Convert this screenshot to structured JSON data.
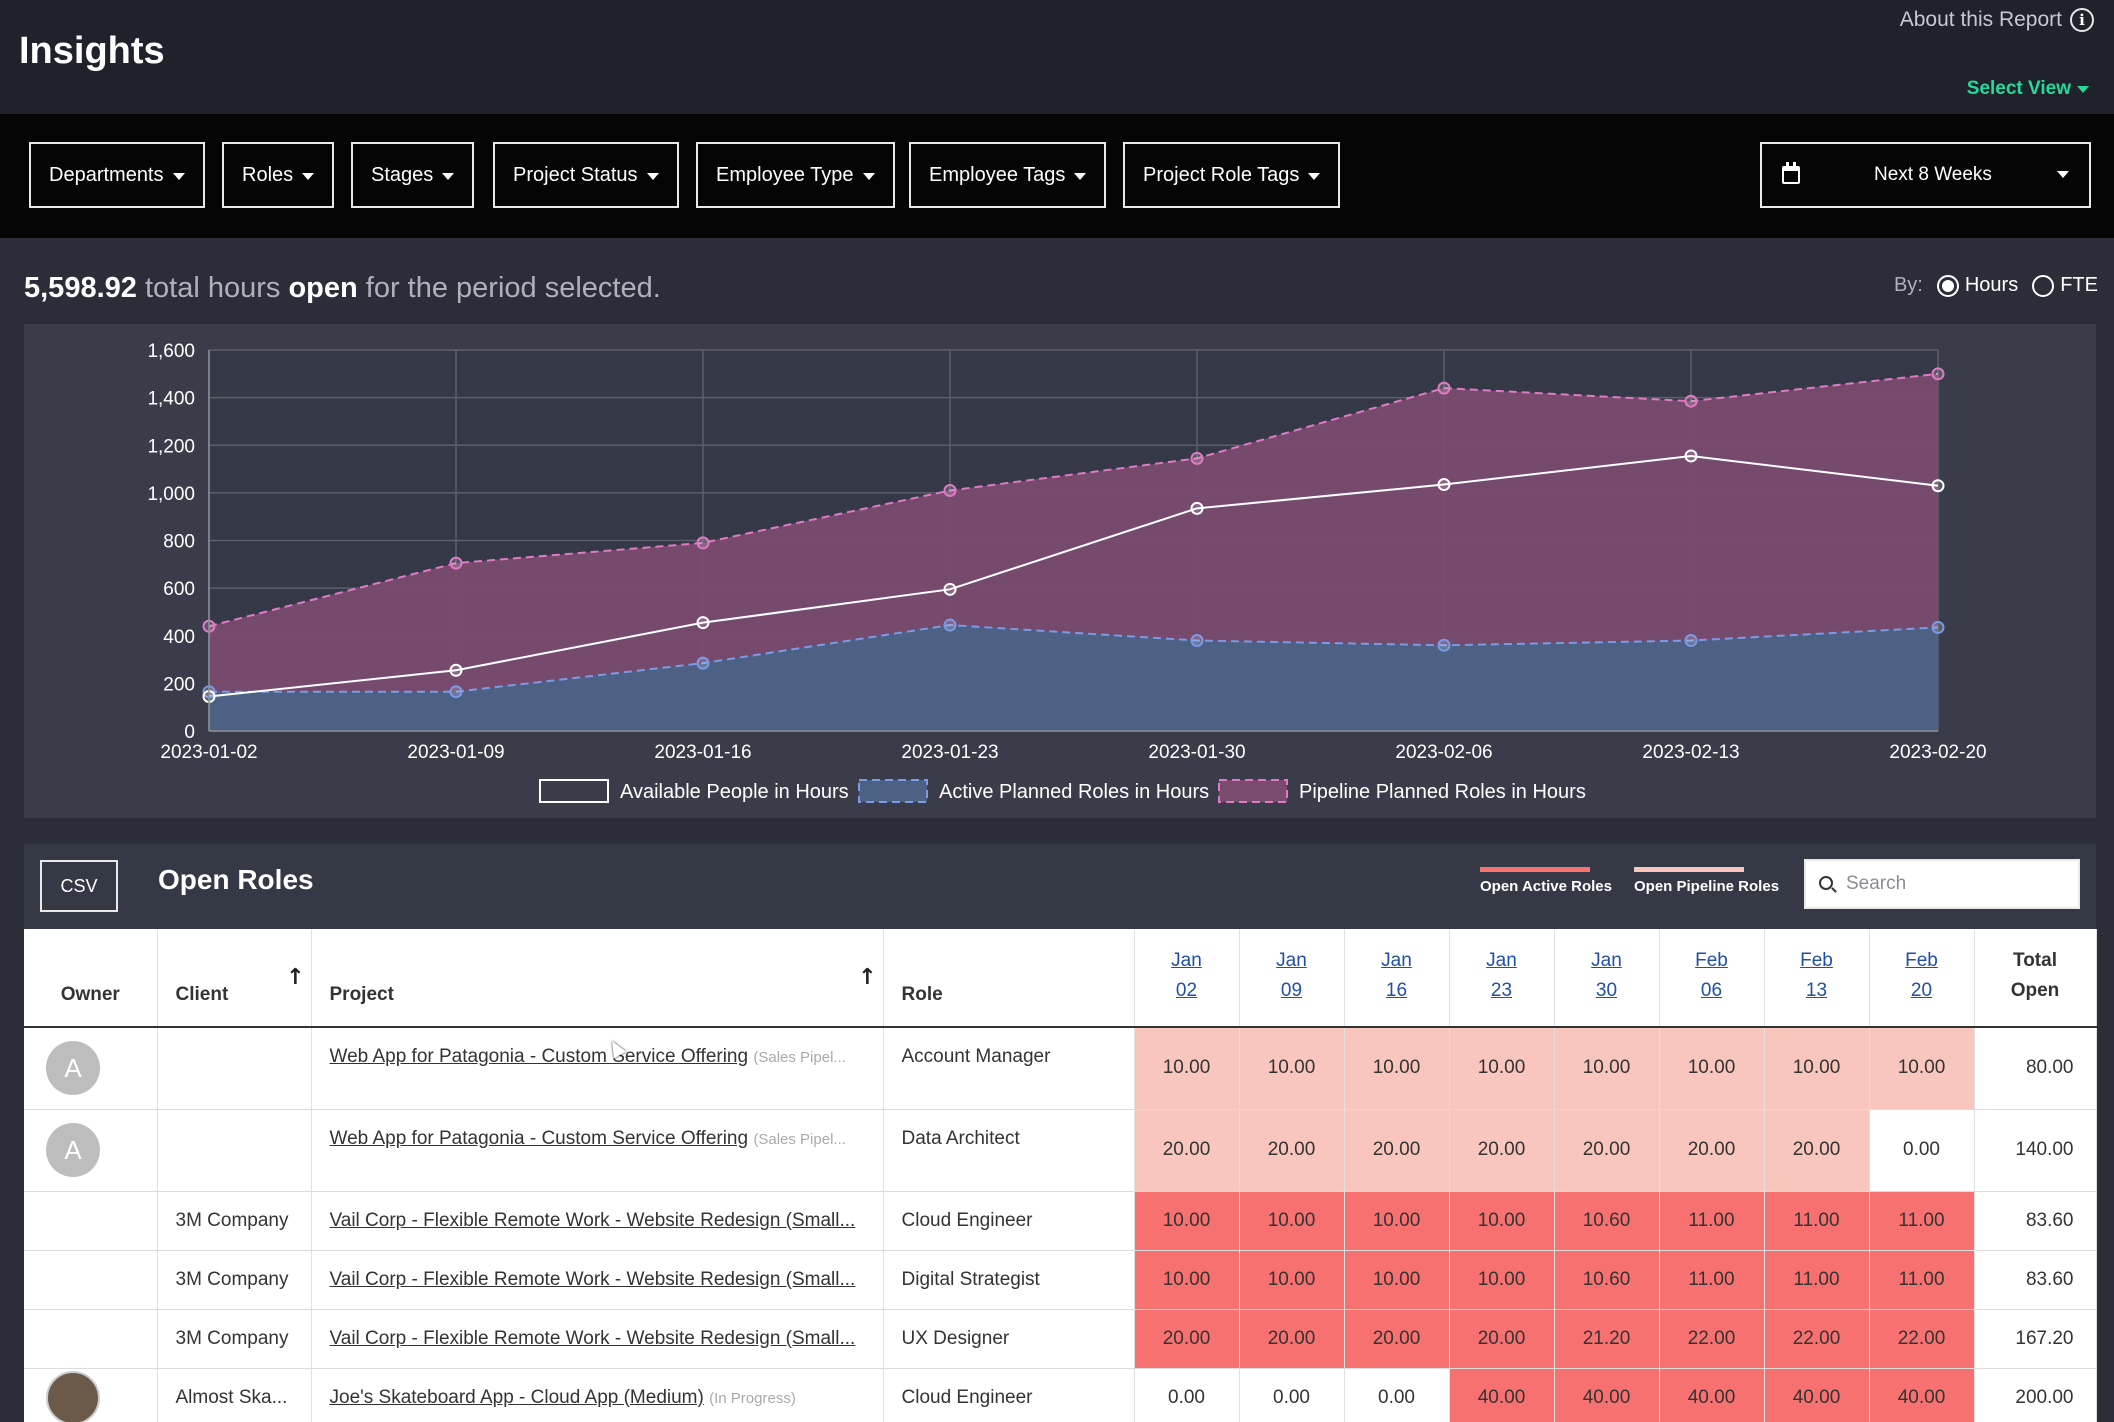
{
  "header": {
    "title": "Insights",
    "about_label": "About this Report",
    "select_view_label": "Select View"
  },
  "filters": [
    {
      "label": "Departments"
    },
    {
      "label": "Roles"
    },
    {
      "label": "Stages"
    },
    {
      "label": "Project Status"
    },
    {
      "label": "Employee Type"
    },
    {
      "label": "Employee Tags"
    },
    {
      "label": "Project Role Tags"
    }
  ],
  "period": {
    "label": "Next 8 Weeks"
  },
  "summary": {
    "total": "5,598.92",
    "text_a": "total hours",
    "text_b": "open",
    "text_c": "for the period selected."
  },
  "by": {
    "label": "By:",
    "options": [
      "Hours",
      "FTE"
    ],
    "selected": "Hours"
  },
  "chart_data": {
    "type": "area",
    "x": [
      "2023-01-02",
      "2023-01-09",
      "2023-01-16",
      "2023-01-23",
      "2023-01-30",
      "2023-02-06",
      "2023-02-13",
      "2023-02-20"
    ],
    "ylim": [
      0,
      1600
    ],
    "yticks": [
      "0",
      "200",
      "400",
      "600",
      "800",
      "1,000",
      "1,200",
      "1,400",
      "1,600"
    ],
    "grid": true,
    "legend_position": "bottom",
    "series": [
      {
        "name": "Available People in Hours",
        "values": [
          145,
          255,
          455,
          595,
          935,
          1035,
          1155,
          1030
        ],
        "color": "#ffffff"
      },
      {
        "name": "Active Planned Roles in Hours",
        "values": [
          165,
          165,
          285,
          445,
          380,
          360,
          380,
          435
        ],
        "color": "#7b9ae8"
      },
      {
        "name": "Pipeline Planned Roles in Hours",
        "values": [
          440,
          705,
          790,
          1010,
          1145,
          1440,
          1385,
          1500
        ],
        "color": "#e07ac8"
      }
    ]
  },
  "roles": {
    "csv_label": "CSV",
    "title": "Open Roles",
    "key_active": "Open Active Roles",
    "key_pipeline": "Open Pipeline Roles",
    "search_placeholder": "Search",
    "columns": {
      "owner": "Owner",
      "client": "Client",
      "project": "Project",
      "role": "Role",
      "total_a": "Total",
      "total_b": "Open"
    },
    "weeks": [
      {
        "m": "Jan",
        "d": "02"
      },
      {
        "m": "Jan",
        "d": "09"
      },
      {
        "m": "Jan",
        "d": "16"
      },
      {
        "m": "Jan",
        "d": "23"
      },
      {
        "m": "Jan",
        "d": "30"
      },
      {
        "m": "Feb",
        "d": "06"
      },
      {
        "m": "Feb",
        "d": "13"
      },
      {
        "m": "Feb",
        "d": "20"
      }
    ],
    "rows": [
      {
        "owner": "A",
        "client": "",
        "project": "Web App for Patagonia - Custom Service Offering",
        "stage": "(Sales Pipel...",
        "role": "Account Manager",
        "kind": "pipeline",
        "values": [
          "10.00",
          "10.00",
          "10.00",
          "10.00",
          "10.00",
          "10.00",
          "10.00",
          "10.00"
        ],
        "total": "80.00"
      },
      {
        "owner": "A",
        "client": "",
        "project": "Web App for Patagonia - Custom Service Offering",
        "stage": "(Sales Pipel...",
        "role": "Data Architect",
        "kind": "pipeline",
        "values": [
          "20.00",
          "20.00",
          "20.00",
          "20.00",
          "20.00",
          "20.00",
          "20.00",
          "0.00"
        ],
        "total": "140.00"
      },
      {
        "owner": "",
        "client": "3M Company",
        "project": "Vail Corp - Flexible Remote Work - Website Redesign (Small...",
        "stage": "",
        "role": "Cloud Engineer",
        "kind": "active",
        "values": [
          "10.00",
          "10.00",
          "10.00",
          "10.00",
          "10.60",
          "11.00",
          "11.00",
          "11.00"
        ],
        "total": "83.60"
      },
      {
        "owner": "",
        "client": "3M Company",
        "project": "Vail Corp - Flexible Remote Work - Website Redesign (Small...",
        "stage": "",
        "role": "Digital Strategist",
        "kind": "active",
        "values": [
          "10.00",
          "10.00",
          "10.00",
          "10.00",
          "10.60",
          "11.00",
          "11.00",
          "11.00"
        ],
        "total": "83.60"
      },
      {
        "owner": "",
        "client": "3M Company",
        "project": "Vail Corp - Flexible Remote Work - Website Redesign (Small...",
        "stage": "",
        "role": "UX Designer",
        "kind": "active",
        "values": [
          "20.00",
          "20.00",
          "20.00",
          "20.00",
          "21.20",
          "22.00",
          "22.00",
          "22.00"
        ],
        "total": "167.20"
      },
      {
        "owner": "photo",
        "client": "Almost Ska...",
        "project": "Joe's Skateboard App - Cloud App (Medium)",
        "stage": "(In Progress)",
        "role": "Cloud Engineer",
        "kind": "active",
        "values": [
          "0.00",
          "0.00",
          "0.00",
          "40.00",
          "40.00",
          "40.00",
          "40.00",
          "40.00"
        ],
        "total": "200.00"
      }
    ]
  },
  "colors": {
    "active": "#f87171",
    "pipeline": "#f9c6bd",
    "pipeline_area": "#7a4b6f",
    "active_area": "#4c6183"
  }
}
